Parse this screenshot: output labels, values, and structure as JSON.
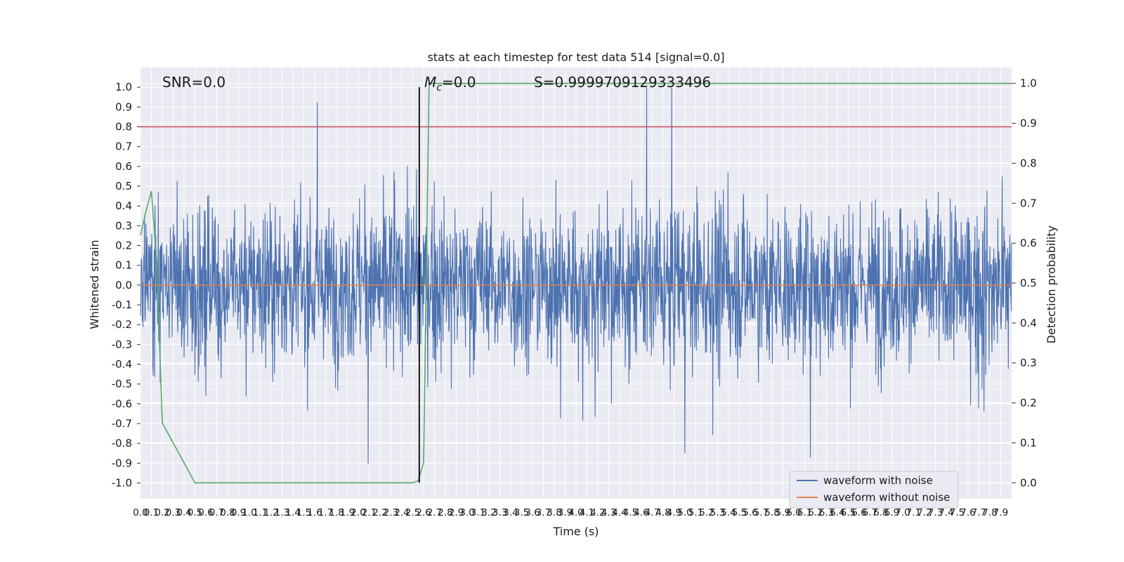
{
  "chart_data": {
    "type": "line",
    "title": "stats at each timestep for test data 514 [signal=0.0]",
    "xlabel": "Time (s)",
    "ylabel_left": "Whitened strain",
    "ylabel_right": "Detection probability",
    "xlim": [
      0.0,
      8.0
    ],
    "ylim_left": [
      -1.08,
      1.1
    ],
    "ylim_right": [
      -0.04,
      1.04
    ],
    "x_ticks": [
      "0.0",
      "0.1",
      "0.2",
      "0.3",
      "0.4",
      "0.5",
      "0.6",
      "0.7",
      "0.8",
      "0.9",
      "1.0",
      "1.1",
      "1.2",
      "1.3",
      "1.4",
      "1.5",
      "1.6",
      "1.7",
      "1.8",
      "1.9",
      "2.0",
      "2.1",
      "2.2",
      "2.3",
      "2.4",
      "2.5",
      "2.6",
      "2.7",
      "2.8",
      "2.9",
      "3.0",
      "3.1",
      "3.2",
      "3.3",
      "3.4",
      "3.5",
      "3.6",
      "3.7",
      "3.8",
      "3.9",
      "4.0",
      "4.1",
      "4.2",
      "4.3",
      "4.4",
      "4.5",
      "4.6",
      "4.7",
      "4.8",
      "4.9",
      "5.0",
      "5.1",
      "5.2",
      "5.3",
      "5.4",
      "5.5",
      "5.6",
      "5.7",
      "5.8",
      "5.9",
      "6.0",
      "6.1",
      "6.2",
      "6.3",
      "6.4",
      "6.5",
      "6.6",
      "6.7",
      "6.8",
      "6.9",
      "7.0",
      "7.1",
      "7.2",
      "7.3",
      "7.4",
      "7.5",
      "7.6",
      "7.7",
      "7.8",
      "7.9"
    ],
    "y_ticks_left": [
      "-1.0",
      "-0.9",
      "-0.8",
      "-0.7",
      "-0.6",
      "-0.5",
      "-0.4",
      "-0.3",
      "-0.2",
      "-0.1",
      "0.0",
      "0.1",
      "0.2",
      "0.3",
      "0.4",
      "0.5",
      "0.6",
      "0.7",
      "0.8",
      "0.9",
      "1.0"
    ],
    "y_ticks_right": [
      "0.0",
      "0.1",
      "0.2",
      "0.3",
      "0.4",
      "0.5",
      "0.6",
      "0.7",
      "0.8",
      "0.9",
      "1.0"
    ],
    "grid": true,
    "legend_position": "lower-right",
    "series": [
      {
        "name": "waveform with noise",
        "axis": "left",
        "color": "#4c72b0",
        "style": "dense noise, amplitude mostly within ±0.6 with peaks up to ~1.0"
      },
      {
        "name": "waveform without noise",
        "axis": "left",
        "color": "#dd8452",
        "x": [
          0.0,
          8.0
        ],
        "y": [
          0.0,
          0.0
        ]
      },
      {
        "axis": "right",
        "color": "#55a868",
        "x": [
          0.0,
          0.05,
          0.1,
          0.15,
          0.2,
          0.5,
          1.0,
          1.5,
          2.0,
          2.5,
          2.55,
          2.6,
          2.65,
          3.0,
          4.0,
          5.0,
          6.0,
          7.0,
          8.0
        ],
        "y": [
          0.62,
          0.68,
          0.73,
          0.55,
          0.15,
          0.0,
          0.0,
          0.0,
          0.0,
          0.0,
          0.005,
          0.05,
          1.0,
          1.0,
          1.0,
          1.0,
          1.0,
          1.0,
          1.0
        ]
      },
      {
        "axis": "left",
        "color": "#c44e52",
        "type": "threshold",
        "y": 0.8
      },
      {
        "axis": "left",
        "color": "#000000",
        "type": "vertical-marker",
        "x": 2.56
      }
    ],
    "annotations": {
      "snr": "SNR=0.0",
      "mc_symbol": "M",
      "mc_subscript": "c",
      "mc_value": "=0.0",
      "s": "S=0.9999709129333496"
    }
  },
  "colors": {
    "axes_background": "#eaeaf2",
    "grid": "#ffffff"
  }
}
